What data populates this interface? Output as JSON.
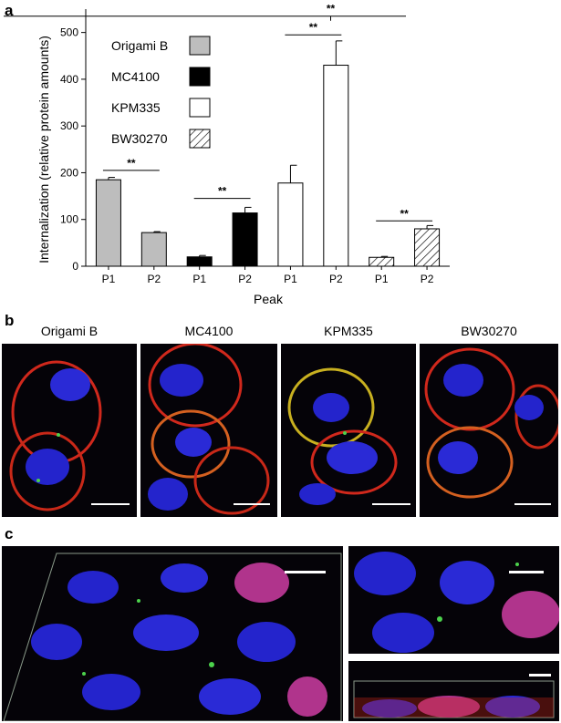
{
  "panels": {
    "a": "a",
    "b": "b",
    "c": "c"
  },
  "colors": {
    "grey": "#bdbdbd",
    "black": "#000000",
    "white": "#ffffff",
    "hatch": "#000000"
  },
  "chart_data": {
    "type": "bar",
    "xlabel": "Peak",
    "ylabel": "Internalization (relative protein amounts)",
    "ylim": [
      0,
      550
    ],
    "yticks": [
      0,
      100,
      200,
      300,
      400,
      500
    ],
    "categories": [
      "P1",
      "P2",
      "P1",
      "P2",
      "P1",
      "P2",
      "P1",
      "P2"
    ],
    "bars": [
      {
        "strain": "Origami B",
        "peak": "P1",
        "value": 185,
        "error": 5,
        "fill": "grey"
      },
      {
        "strain": "Origami B",
        "peak": "P2",
        "value": 72,
        "error": 2,
        "fill": "grey"
      },
      {
        "strain": "MC4100",
        "peak": "P1",
        "value": 20,
        "error": 3,
        "fill": "black"
      },
      {
        "strain": "MC4100",
        "peak": "P2",
        "value": 114,
        "error": 12,
        "fill": "black"
      },
      {
        "strain": "KPM335",
        "peak": "P1",
        "value": 178,
        "error": 38,
        "fill": "white"
      },
      {
        "strain": "KPM335",
        "peak": "P2",
        "value": 430,
        "error": 52,
        "fill": "white"
      },
      {
        "strain": "BW30270",
        "peak": "P1",
        "value": 19,
        "error": 2,
        "fill": "hatch"
      },
      {
        "strain": "BW30270",
        "peak": "P2",
        "value": 80,
        "error": 7,
        "fill": "hatch"
      }
    ],
    "legend": [
      {
        "label": "Origami B",
        "fill": "grey"
      },
      {
        "label": "MC4100",
        "fill": "black"
      },
      {
        "label": "KPM335",
        "fill": "white"
      },
      {
        "label": "BW30270",
        "fill": "hatch"
      }
    ],
    "significance": [
      {
        "from": 0,
        "to": 1,
        "label": "**",
        "level": 205
      },
      {
        "from": 2,
        "to": 3,
        "label": "**",
        "level": 145
      },
      {
        "from": 4,
        "to": 5,
        "label": "**",
        "level": 495
      },
      {
        "from": 6,
        "to": 7,
        "label": "**",
        "level": 97
      },
      {
        "from": 0,
        "to": 7,
        "label": "**",
        "level": 535,
        "spans_axis": true
      }
    ]
  },
  "microscopy_b": {
    "titles": [
      "Origami B",
      "MC4100",
      "KPM335",
      "BW30270"
    ]
  }
}
